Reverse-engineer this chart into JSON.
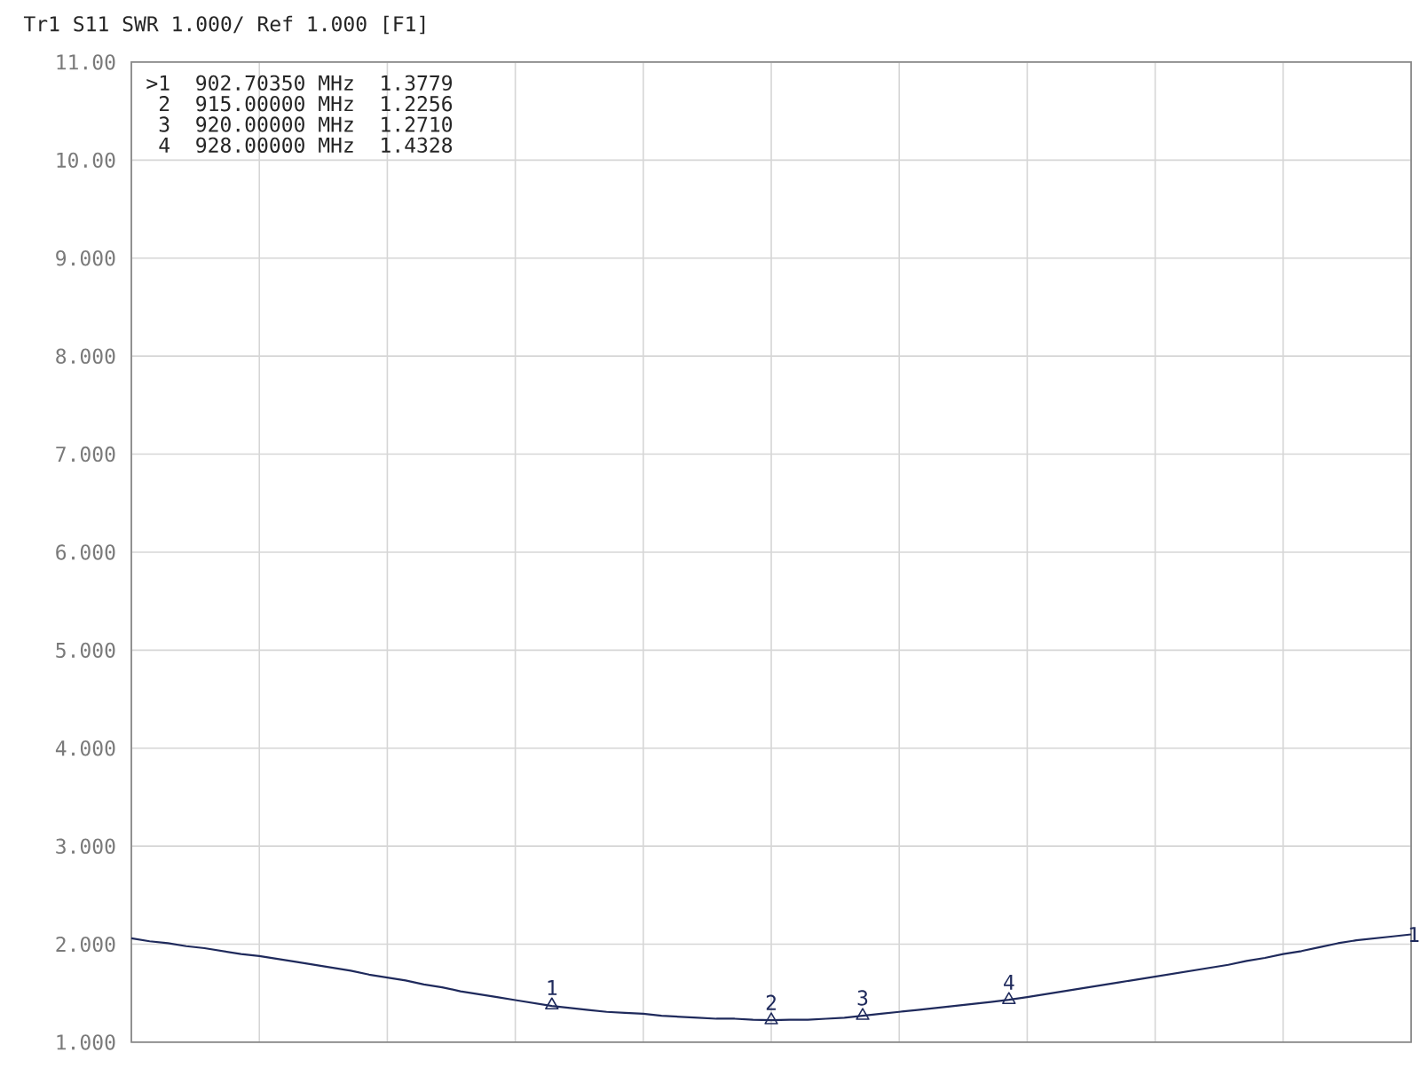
{
  "chart_data": {
    "type": "line",
    "title": "Tr1 S11 SWR 1.000/ Ref 1.000 [F1]",
    "categories": [
      null,
      null,
      null,
      null,
      null,
      null,
      null,
      null,
      null,
      null,
      null,
      null,
      null,
      null,
      null,
      null,
      null,
      null,
      null,
      null,
      null,
      null,
      null,
      null,
      null,
      null,
      null,
      null,
      null,
      null,
      null,
      null,
      null,
      null,
      null,
      null,
      null,
      null,
      null,
      null,
      null,
      null,
      null,
      null,
      null,
      null,
      null,
      null,
      null,
      null,
      null,
      null,
      null,
      null,
      null,
      null,
      null,
      null,
      null,
      null,
      null,
      null,
      null,
      null,
      null,
      null,
      null,
      null,
      null,
      null,
      null
    ],
    "series": [
      {
        "name": "1",
        "color": "#1f2a5c",
        "values": [
          2.06,
          2.03,
          2.01,
          1.98,
          1.96,
          1.93,
          1.9,
          1.88,
          1.85,
          1.82,
          1.79,
          1.76,
          1.73,
          1.69,
          1.66,
          1.63,
          1.59,
          1.56,
          1.52,
          1.49,
          1.46,
          1.43,
          1.4,
          1.37,
          1.35,
          1.33,
          1.31,
          1.3,
          1.29,
          1.27,
          1.26,
          1.25,
          1.24,
          1.24,
          1.23,
          1.2256,
          1.23,
          1.23,
          1.24,
          1.25,
          1.271,
          1.29,
          1.31,
          1.33,
          1.35,
          1.37,
          1.39,
          1.41,
          1.4328,
          1.46,
          1.49,
          1.52,
          1.55,
          1.58,
          1.61,
          1.64,
          1.67,
          1.7,
          1.73,
          1.76,
          1.79,
          1.83,
          1.86,
          1.9,
          1.93,
          1.97,
          2.01,
          2.04,
          2.06,
          2.08,
          2.1
        ]
      },
      {
        "type": "scatter",
        "color": "#1f2a5c",
        "marker": "triangle",
        "values": [
          null,
          null,
          null,
          null,
          null,
          null,
          null,
          null,
          null,
          null,
          null,
          null,
          null,
          null,
          null,
          null,
          null,
          null,
          null,
          null,
          null,
          null,
          null,
          1.3779,
          null,
          null,
          null,
          null,
          null,
          null,
          null,
          null,
          null,
          null,
          null,
          1.2256,
          null,
          null,
          null,
          null,
          1.271,
          null,
          null,
          null,
          null,
          null,
          null,
          null,
          1.4328,
          null,
          null,
          null,
          null,
          null,
          null,
          null,
          null,
          null,
          null,
          null,
          null,
          null,
          null,
          null,
          null,
          null,
          null,
          null,
          null,
          null,
          null
        ]
      }
    ],
    "ylim": [
      1,
      11
    ],
    "yticks": [
      {
        "value": 1,
        "label": "1.000"
      },
      {
        "value": 2,
        "label": "2.000"
      },
      {
        "value": 3,
        "label": "3.000"
      },
      {
        "value": 4,
        "label": "4.000"
      },
      {
        "value": 5,
        "label": "5.000"
      },
      {
        "value": 6,
        "label": "6.000"
      },
      {
        "value": 7,
        "label": "7.000"
      },
      {
        "value": 8,
        "label": "8.000"
      },
      {
        "value": 9,
        "label": "9.000"
      },
      {
        "value": 10,
        "label": "10.00"
      },
      {
        "value": 11,
        "label": "11.00"
      }
    ],
    "grid": true,
    "tick_labels": "y",
    "annotations": [
      ">1  902.70350 MHz  1.3779",
      " 2  915.00000 MHz  1.2256",
      " 3  920.00000 MHz  1.2710",
      " 4  928.00000 MHz  1.4328",
      {
        "text": "1",
        "y": 1.3779
      },
      {
        "text": "2",
        "y": 1.2256
      },
      {
        "text": "3",
        "y": 1.271
      },
      {
        "text": "4",
        "y": 1.4328
      }
    ]
  }
}
